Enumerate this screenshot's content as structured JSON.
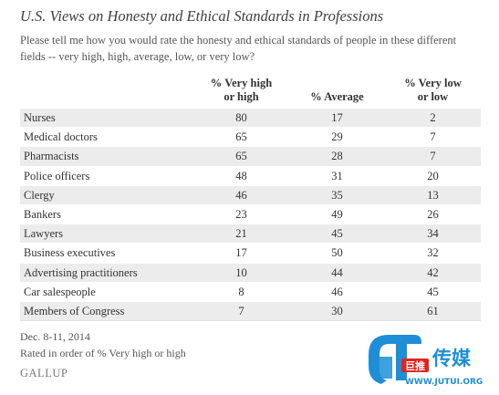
{
  "title": "U.S. Views on Honesty and Ethical Standards in Professions",
  "subtitle": "Please tell me how you would rate the honesty and ethical standards of people in these different fields -- very high, high, average, low, or very low?",
  "chart_data": {
    "type": "table",
    "columns": [
      "",
      "% Very high or high",
      "% Average",
      "% Very low or low"
    ],
    "rows": [
      [
        "Nurses",
        "80",
        "17",
        "2"
      ],
      [
        "Medical doctors",
        "65",
        "29",
        "7"
      ],
      [
        "Pharmacists",
        "65",
        "28",
        "7"
      ],
      [
        "Police officers",
        "48",
        "31",
        "20"
      ],
      [
        "Clergy",
        "46",
        "35",
        "13"
      ],
      [
        "Bankers",
        "23",
        "49",
        "26"
      ],
      [
        "Lawyers",
        "21",
        "45",
        "34"
      ],
      [
        "Business executives",
        "17",
        "50",
        "32"
      ],
      [
        "Advertising practitioners",
        "10",
        "44",
        "42"
      ],
      [
        "Car salespeople",
        "8",
        "46",
        "45"
      ],
      [
        "Members of Congress",
        "7",
        "30",
        "61"
      ]
    ]
  },
  "footnotes": [
    "Dec. 8-11, 2014",
    "Rated in order of % Very high or high"
  ],
  "brand": "GALLUP",
  "watermark": {
    "text_cn": "传媒",
    "tag_cn": "巨推",
    "url": "WWW.JUTUI.ORG",
    "colors": {
      "blue": "#1e8fd6",
      "red": "#e2231a"
    }
  },
  "colors": {
    "band": "#ececec",
    "text": "#333333"
  }
}
